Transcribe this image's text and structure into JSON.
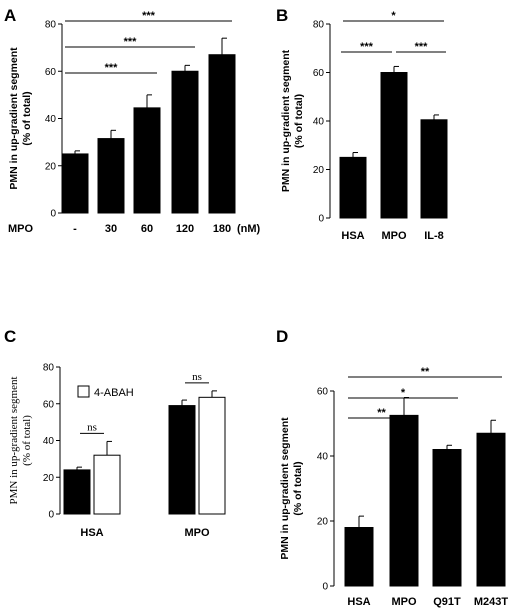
{
  "chart_data": [
    {
      "panel": "A",
      "type": "bar",
      "axis_label": "MPO",
      "unit_label": "(nM)",
      "categories": [
        "-",
        "30",
        "60",
        "120",
        "180"
      ],
      "values": [
        25,
        31.5,
        44.5,
        60,
        67
      ],
      "errors": [
        1.3,
        3.5,
        5.5,
        2.5,
        7
      ],
      "ylabel": [
        "PMN in up-gradient segment",
        "(% of total)"
      ],
      "ylim": [
        0,
        80
      ],
      "yticks": [
        0,
        20,
        40,
        60,
        80
      ],
      "bar_color": "#000000",
      "significance": [
        {
          "from": 0,
          "to": 2,
          "label": "***"
        },
        {
          "from": 0,
          "to": 3,
          "label": "***"
        },
        {
          "from": 0,
          "to": 4,
          "label": "***"
        }
      ]
    },
    {
      "panel": "B",
      "type": "bar",
      "categories": [
        "HSA",
        "MPO",
        "IL-8"
      ],
      "values": [
        25,
        60,
        40.5
      ],
      "errors": [
        2,
        2.5,
        2
      ],
      "ylabel": [
        "PMN in up-gradient segment",
        "(% of total)"
      ],
      "ylim": [
        0,
        80
      ],
      "yticks": [
        0,
        20,
        40,
        60,
        80
      ],
      "bar_color": "#000000",
      "significance": [
        {
          "from": 0,
          "to": 1,
          "label": "***"
        },
        {
          "from": 1,
          "to": 2,
          "label": "***"
        },
        {
          "from": 0,
          "to": 2,
          "label": "*"
        }
      ]
    },
    {
      "panel": "C",
      "type": "bar",
      "categories": [
        "HSA",
        "MPO"
      ],
      "series": [
        {
          "name": "",
          "color": "#000000",
          "values": [
            24,
            59
          ],
          "errors": [
            1.5,
            3
          ]
        },
        {
          "name": "4-ABAH",
          "color": "#ffffff",
          "values": [
            32,
            63.5
          ],
          "errors": [
            7.5,
            3.5
          ]
        }
      ],
      "ylabel": [
        "PMN in up-gradient segment",
        "(% of total)"
      ],
      "ylim": [
        0,
        80
      ],
      "yticks": [
        0,
        20,
        40,
        60,
        80
      ],
      "legend": "top-left",
      "significance": [
        {
          "group": 0,
          "label": "ns"
        },
        {
          "group": 1,
          "label": "ns"
        }
      ]
    },
    {
      "panel": "D",
      "type": "bar",
      "categories": [
        "HSA",
        "MPO",
        "Q91T",
        "M243T"
      ],
      "values": [
        18,
        52.5,
        42,
        47
      ],
      "errors": [
        3.5,
        5.5,
        1.3,
        4
      ],
      "ylabel": [
        "PMN in up-gradient segment",
        "(% of total)"
      ],
      "ylim": [
        0,
        60
      ],
      "yticks": [
        0,
        20,
        40,
        60
      ],
      "bar_color": "#000000",
      "significance": [
        {
          "from": 0,
          "to": 1,
          "label": "**"
        },
        {
          "from": 0,
          "to": 2,
          "label": "*"
        },
        {
          "from": 0,
          "to": 3,
          "label": "**"
        }
      ]
    }
  ]
}
